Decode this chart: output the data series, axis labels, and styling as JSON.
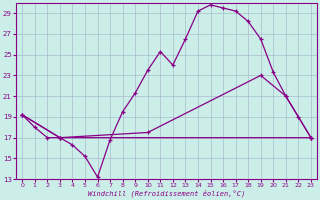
{
  "xlabel": "Windchill (Refroidissement éolien,°C)",
  "bg_color": "#cceee8",
  "grid_color": "#aabbcc",
  "line_color": "#880088",
  "xlim": [
    -0.5,
    23.5
  ],
  "ylim": [
    13,
    30
  ],
  "xticks": [
    0,
    1,
    2,
    3,
    4,
    5,
    6,
    7,
    8,
    9,
    10,
    11,
    12,
    13,
    14,
    15,
    16,
    17,
    18,
    19,
    20,
    21,
    22,
    23
  ],
  "yticks": [
    13,
    15,
    17,
    19,
    21,
    23,
    25,
    27,
    29
  ],
  "line1_x": [
    0,
    1,
    2,
    3,
    4,
    5,
    6,
    7,
    8,
    9,
    10,
    11,
    12,
    13,
    14,
    15,
    16,
    17,
    18,
    19,
    20,
    21,
    22,
    23
  ],
  "line1_y": [
    19.2,
    18.0,
    17.0,
    17.0,
    16.3,
    15.2,
    13.2,
    16.8,
    19.5,
    21.3,
    23.5,
    25.3,
    24.0,
    26.5,
    29.2,
    29.8,
    29.5,
    29.2,
    28.2,
    26.5,
    23.3,
    21.0,
    19.0,
    17.0
  ],
  "line2_x": [
    0,
    3,
    23
  ],
  "line2_y": [
    19.2,
    17.0,
    17.0
  ],
  "line3_x": [
    0,
    3,
    10,
    19,
    21,
    23
  ],
  "line3_y": [
    19.2,
    17.0,
    17.5,
    23.0,
    21.0,
    17.0
  ]
}
